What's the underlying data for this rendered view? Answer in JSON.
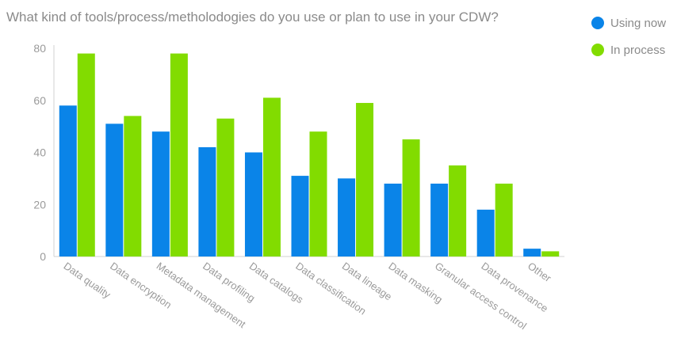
{
  "chart_data": {
    "type": "bar",
    "title": "What kind of tools/process/metholodogies do you use or plan to use in your CDW?",
    "categories": [
      "Data quality",
      "Data encryption",
      "Metadata management",
      "Data profiling",
      "Data catalogs",
      "Data classification",
      "Data lineage",
      "Data masking",
      "Granular access control",
      "Data provenance",
      "Other"
    ],
    "series": [
      {
        "name": "Using now",
        "color": "#0a84e8",
        "values": [
          58,
          51,
          48,
          42,
          40,
          31,
          30,
          28,
          28,
          18,
          3
        ]
      },
      {
        "name": "In process",
        "color": "#82dc00",
        "values": [
          78,
          54,
          78,
          53,
          61,
          48,
          59,
          45,
          35,
          28,
          2
        ]
      }
    ],
    "ylim": [
      0,
      80
    ],
    "yticks": [
      0,
      20,
      40,
      60,
      80
    ],
    "xlabel": "",
    "ylabel": "",
    "legend_position": "top-right",
    "grid": false
  }
}
